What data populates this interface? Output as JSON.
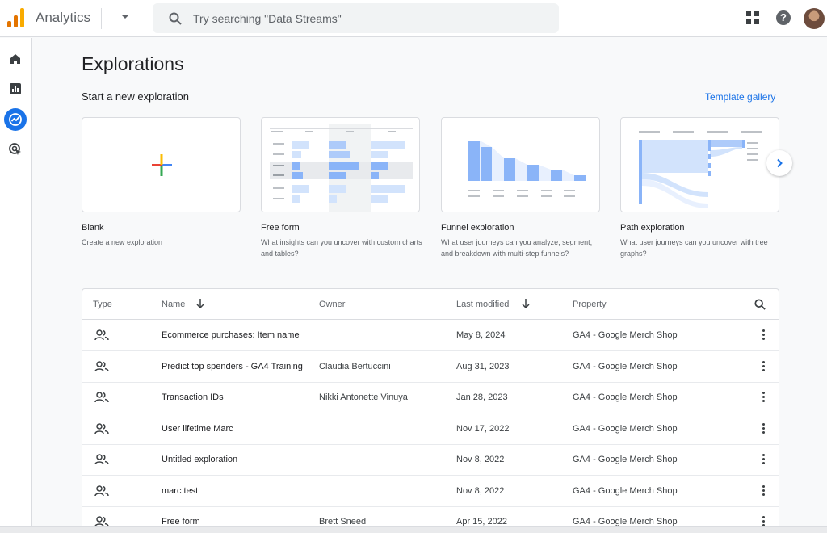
{
  "header": {
    "app_title": "Analytics",
    "search_placeholder": "Try searching \"Data Streams\"",
    "logo_colors": [
      "#f9ab00",
      "#e37400",
      "#e37400"
    ]
  },
  "leftnav": {
    "items": [
      {
        "icon": "home-icon"
      },
      {
        "icon": "reports-icon"
      },
      {
        "icon": "explore-icon",
        "active": true
      },
      {
        "icon": "advertising-icon"
      }
    ]
  },
  "page": {
    "title": "Explorations",
    "section_title": "Start a new exploration",
    "template_link": "Template gallery"
  },
  "templates": [
    {
      "title": "Blank",
      "description": "Create a new exploration"
    },
    {
      "title": "Free form",
      "description": "What insights can you uncover with custom charts and tables?"
    },
    {
      "title": "Funnel exploration",
      "description": "What user journeys can you analyze, segment, and breakdown with multi-step funnels?"
    },
    {
      "title": "Path exploration",
      "description": "What user journeys can you uncover with tree graphs?"
    }
  ],
  "table": {
    "columns": [
      "Type",
      "Name",
      "Owner",
      "Last modified",
      "Property"
    ],
    "rows": [
      {
        "name": "Ecommerce purchases: Item name",
        "owner": "",
        "modified": "May 8, 2024",
        "property": "GA4 - Google Merch Shop"
      },
      {
        "name": "Predict top spenders - GA4 Training",
        "owner": "Claudia Bertuccini",
        "modified": "Aug 31, 2023",
        "property": "GA4 - Google Merch Shop"
      },
      {
        "name": "Transaction IDs",
        "owner": "Nikki Antonette Vinuya",
        "modified": "Jan 28, 2023",
        "property": "GA4 - Google Merch Shop"
      },
      {
        "name": "User lifetime Marc",
        "owner": "",
        "modified": "Nov 17, 2022",
        "property": "GA4 - Google Merch Shop"
      },
      {
        "name": "Untitled exploration",
        "owner": "",
        "modified": "Nov 8, 2022",
        "property": "GA4 - Google Merch Shop"
      },
      {
        "name": "marc test",
        "owner": "",
        "modified": "Nov 8, 2022",
        "property": "GA4 - Google Merch Shop"
      },
      {
        "name": "Free form",
        "owner": "Brett Sneed",
        "modified": "Apr 15, 2022",
        "property": "GA4 - Google Merch Shop"
      }
    ]
  },
  "colors": {
    "accent": "#1a73e8",
    "preview_light": "#d2e3fc",
    "preview_mid": "#aecbfa",
    "preview_dark": "#8ab4f8"
  }
}
